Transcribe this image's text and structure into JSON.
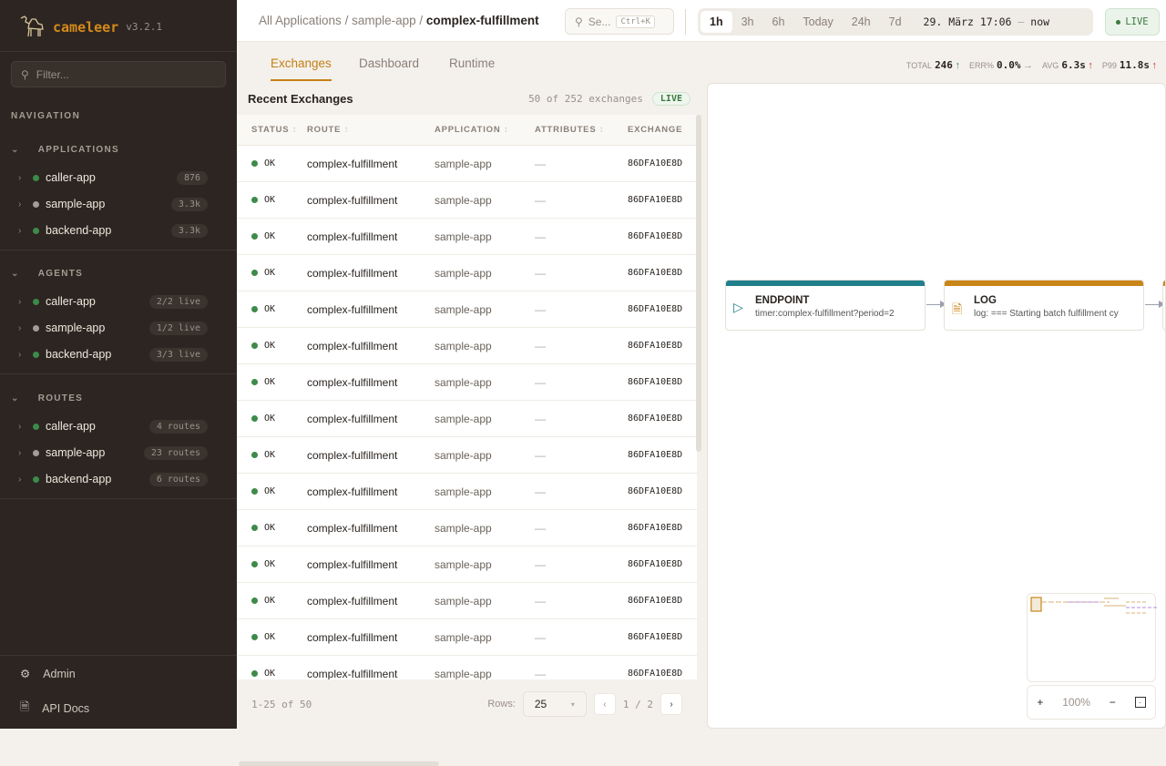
{
  "brand": {
    "name": "cameleer",
    "version": "v3.2.1"
  },
  "sidebar": {
    "filter_placeholder": "Filter...",
    "nav_label": "NAVIGATION",
    "sections": [
      {
        "title": "APPLICATIONS",
        "items": [
          {
            "label": "caller-app",
            "badge": "876",
            "status": "green"
          },
          {
            "label": "sample-app",
            "badge": "3.3k",
            "status": "grey"
          },
          {
            "label": "backend-app",
            "badge": "3.3k",
            "status": "green"
          }
        ]
      },
      {
        "title": "AGENTS",
        "items": [
          {
            "label": "caller-app",
            "badge": "2/2 live",
            "status": "green"
          },
          {
            "label": "sample-app",
            "badge": "1/2 live",
            "status": "grey"
          },
          {
            "label": "backend-app",
            "badge": "3/3 live",
            "status": "green"
          }
        ]
      },
      {
        "title": "ROUTES",
        "items": [
          {
            "label": "caller-app",
            "badge": "4 routes",
            "status": "green"
          },
          {
            "label": "sample-app",
            "badge": "23 routes",
            "status": "grey"
          },
          {
            "label": "backend-app",
            "badge": "6 routes",
            "status": "green"
          }
        ]
      }
    ],
    "footer": [
      {
        "label": "Admin",
        "icon": "gear-icon"
      },
      {
        "label": "API Docs",
        "icon": "document-icon"
      }
    ]
  },
  "header": {
    "breadcrumb": [
      "All Applications",
      "sample-app",
      "complex-fulfillment"
    ],
    "search_placeholder": "Se...",
    "search_shortcut": "Ctrl+K",
    "time_ranges": [
      "1h",
      "3h",
      "6h",
      "Today",
      "24h",
      "7d"
    ],
    "active_range": "1h",
    "range_from": "29. März 17:06",
    "range_sep": "—",
    "range_to": "now",
    "live_label": "LIVE"
  },
  "tabs": [
    "Exchanges",
    "Dashboard",
    "Runtime"
  ],
  "kpis": [
    {
      "label": "TOTAL",
      "value": "246",
      "trend": "↑",
      "color": "#3d8a5a"
    },
    {
      "label": "ERR%",
      "value": "0.0%",
      "trend": "→",
      "color": "#9a9088"
    },
    {
      "label": "AVG",
      "value": "6.3s",
      "trend": "↑",
      "color": "#c0392b"
    },
    {
      "label": "P99",
      "value": "11.8s",
      "trend": "↑",
      "color": "#c0392b"
    }
  ],
  "exchanges": {
    "title": "Recent Exchanges",
    "count": "50 of 252 exchanges",
    "live": "LIVE",
    "columns": [
      "STATUS",
      "ROUTE",
      "APPLICATION",
      "ATTRIBUTES",
      "EXCHANGE"
    ],
    "rows": [
      {
        "status": "OK",
        "route": "complex-fulfillment",
        "app": "sample-app",
        "attrs": "—",
        "id": "86DFA10E8D"
      },
      {
        "status": "OK",
        "route": "complex-fulfillment",
        "app": "sample-app",
        "attrs": "—",
        "id": "86DFA10E8D"
      },
      {
        "status": "OK",
        "route": "complex-fulfillment",
        "app": "sample-app",
        "attrs": "—",
        "id": "86DFA10E8D"
      },
      {
        "status": "OK",
        "route": "complex-fulfillment",
        "app": "sample-app",
        "attrs": "—",
        "id": "86DFA10E8D"
      },
      {
        "status": "OK",
        "route": "complex-fulfillment",
        "app": "sample-app",
        "attrs": "—",
        "id": "86DFA10E8D"
      },
      {
        "status": "OK",
        "route": "complex-fulfillment",
        "app": "sample-app",
        "attrs": "—",
        "id": "86DFA10E8D"
      },
      {
        "status": "OK",
        "route": "complex-fulfillment",
        "app": "sample-app",
        "attrs": "—",
        "id": "86DFA10E8D"
      },
      {
        "status": "OK",
        "route": "complex-fulfillment",
        "app": "sample-app",
        "attrs": "—",
        "id": "86DFA10E8D"
      },
      {
        "status": "OK",
        "route": "complex-fulfillment",
        "app": "sample-app",
        "attrs": "—",
        "id": "86DFA10E8D"
      },
      {
        "status": "OK",
        "route": "complex-fulfillment",
        "app": "sample-app",
        "attrs": "—",
        "id": "86DFA10E8D"
      },
      {
        "status": "OK",
        "route": "complex-fulfillment",
        "app": "sample-app",
        "attrs": "—",
        "id": "86DFA10E8D"
      },
      {
        "status": "OK",
        "route": "complex-fulfillment",
        "app": "sample-app",
        "attrs": "—",
        "id": "86DFA10E8D"
      },
      {
        "status": "OK",
        "route": "complex-fulfillment",
        "app": "sample-app",
        "attrs": "—",
        "id": "86DFA10E8D"
      },
      {
        "status": "OK",
        "route": "complex-fulfillment",
        "app": "sample-app",
        "attrs": "—",
        "id": "86DFA10E8D"
      },
      {
        "status": "OK",
        "route": "complex-fulfillment",
        "app": "sample-app",
        "attrs": "—",
        "id": "86DFA10E8D"
      }
    ],
    "pager": {
      "range": "1-25 of 50",
      "rows_label": "Rows:",
      "rows_value": "25",
      "page": "1 / 2"
    }
  },
  "diagram": {
    "nodes": [
      {
        "type": "ENDPOINT",
        "detail": "timer:complex-fulfillment?period=2",
        "color": "#1f7f8c",
        "icon": "play-icon"
      },
      {
        "type": "LOG",
        "detail": "log: === Starting batch fulfillment cy",
        "color": "#c98516",
        "icon": "document-icon"
      }
    ],
    "zoom": "100%"
  },
  "colors": {
    "ok": "#3d8a4a",
    "grey": "#a59d95",
    "accent": "#c47f14"
  }
}
